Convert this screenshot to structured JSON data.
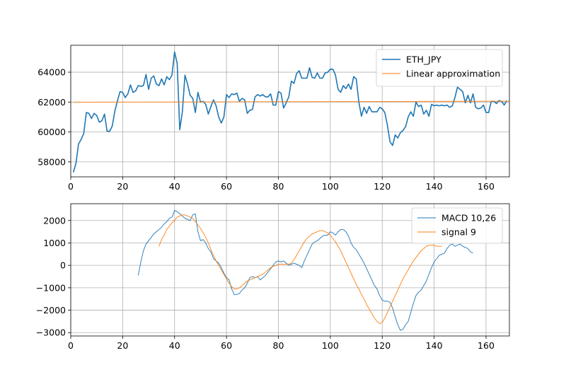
{
  "chart_data": [
    {
      "type": "line",
      "xlim": [
        0,
        169
      ],
      "ylim": [
        57000,
        65800
      ],
      "xticks": [
        0,
        20,
        40,
        60,
        80,
        100,
        120,
        140,
        160
      ],
      "yticks": [
        58000,
        60000,
        62000,
        64000
      ],
      "grid": true,
      "legend_position": "top-right",
      "series": [
        {
          "name": "ETH_JPY",
          "color": "#1f77b4",
          "x_start": 1,
          "values": [
            57300,
            57900,
            59200,
            59500,
            59900,
            61300,
            61250,
            60900,
            61250,
            61100,
            60650,
            60750,
            61200,
            60050,
            60050,
            60400,
            61400,
            62100,
            62700,
            62650,
            62300,
            62550,
            63150,
            62650,
            62750,
            63100,
            63050,
            63100,
            63850,
            62850,
            63600,
            63750,
            63200,
            63100,
            63550,
            63150,
            63700,
            63500,
            63800,
            65350,
            64600,
            60150,
            61350,
            63800,
            63200,
            62450,
            62250,
            61300,
            62650,
            62000,
            62050,
            61850,
            61200,
            61700,
            62150,
            61750,
            61000,
            60600,
            61000,
            62500,
            62300,
            62550,
            62500,
            62600,
            62050,
            62250,
            62150,
            61250,
            61450,
            61500,
            62350,
            62500,
            62400,
            62500,
            62350,
            62350,
            62550,
            61800,
            61800,
            62700,
            62600,
            61600,
            61950,
            62350,
            63400,
            63250,
            63900,
            64100,
            63600,
            63600,
            63600,
            64300,
            63650,
            63600,
            63950,
            63600,
            63600,
            63950,
            64000,
            64200,
            64200,
            63800,
            62850,
            62650,
            63100,
            62900,
            63200,
            62850,
            63700,
            63550,
            62000,
            61050,
            61650,
            61250,
            61700,
            61350,
            61350,
            61350,
            61650,
            61550,
            61300,
            60450,
            59350,
            59100,
            59800,
            59600,
            59950,
            60100,
            60350,
            61000,
            61350,
            61050,
            62000,
            61700,
            61800,
            61200,
            61450,
            61050,
            61850,
            61750,
            61800,
            61750,
            61800,
            61750,
            61800,
            61650,
            61750,
            62300,
            63000,
            62850,
            62700,
            61950,
            62450,
            61950,
            62550,
            61650,
            61550,
            61600,
            61800,
            61300,
            61300,
            62050,
            62050,
            61900,
            62100,
            62050,
            61800,
            62100
          ]
        },
        {
          "name": "Linear approximation",
          "color": "#ff7f0e",
          "x": [
            1,
            169
          ],
          "values": [
            61990,
            62060
          ]
        }
      ]
    },
    {
      "type": "line",
      "xlim": [
        0,
        169
      ],
      "ylim": [
        -3150,
        2750
      ],
      "xticks": [
        0,
        20,
        40,
        60,
        80,
        100,
        120,
        140,
        160
      ],
      "yticks": [
        -3000,
        -2000,
        -1000,
        0,
        1000,
        2000
      ],
      "grid": true,
      "legend_position": "top-right",
      "series": [
        {
          "name": "MACD 10,26",
          "color": "#1f77b4",
          "x_start": 26,
          "values": [
            -450,
            150,
            650,
            950,
            1100,
            1250,
            1400,
            1500,
            1600,
            1700,
            1850,
            1950,
            2100,
            2150,
            2450,
            2400,
            2300,
            2200,
            2100,
            2050,
            2000,
            2250,
            2300,
            1500,
            1100,
            1150,
            1000,
            750,
            600,
            300,
            200,
            100,
            -100,
            -350,
            -550,
            -650,
            -1050,
            -1300,
            -1300,
            -1250,
            -1100,
            -1000,
            -800,
            -550,
            -500,
            -550,
            -500,
            -650,
            -550,
            -450,
            -300,
            -150,
            0,
            150,
            200,
            150,
            200,
            100,
            0,
            50,
            100,
            50,
            0,
            -100,
            200,
            450,
            700,
            950,
            1050,
            1100,
            1200,
            1300,
            1350,
            1350,
            1500,
            1450,
            1350,
            1500,
            1600,
            1600,
            1500,
            1300,
            1000,
            800,
            700,
            500,
            300,
            100,
            -150,
            -400,
            -650,
            -900,
            -1050,
            -1350,
            -1550,
            -1600,
            -1600,
            -1650,
            -1900,
            -2300,
            -2650,
            -2900,
            -2850,
            -2650,
            -2500,
            -2100,
            -1700,
            -1350,
            -1200,
            -1100,
            -900,
            -700,
            -400,
            -100,
            150,
            300,
            450,
            500,
            550,
            750,
            900,
            950,
            850,
            900,
            950,
            850,
            800,
            750,
            600,
            550
          ]
        },
        {
          "name": "signal 9",
          "color": "#ff7f0e",
          "x_start": 34,
          "values": [
            850,
            1150,
            1350,
            1600,
            1750,
            1900,
            2000,
            2150,
            2200,
            2250,
            2250,
            2200,
            2150,
            2100,
            1950,
            1800,
            1650,
            1450,
            1250,
            1000,
            700,
            450,
            200,
            0,
            -200,
            -400,
            -600,
            -800,
            -950,
            -1050,
            -1050,
            -1000,
            -900,
            -800,
            -700,
            -650,
            -600,
            -550,
            -500,
            -450,
            -400,
            -300,
            -200,
            -100,
            -50,
            0,
            50,
            50,
            50,
            50,
            50,
            100,
            250,
            450,
            650,
            850,
            1050,
            1200,
            1300,
            1400,
            1450,
            1500,
            1550,
            1550,
            1500,
            1450,
            1350,
            1200,
            1050,
            850,
            650,
            400,
            150,
            -100,
            -350,
            -600,
            -850,
            -1050,
            -1300,
            -1500,
            -1750,
            -1950,
            -2150,
            -2350,
            -2500,
            -2600,
            -2550,
            -2350,
            -2100,
            -1850,
            -1600,
            -1350,
            -1100,
            -850,
            -600,
            -400,
            -200,
            0,
            200,
            350,
            500,
            650,
            750,
            850,
            900,
            900,
            900,
            850,
            850,
            850
          ]
        }
      ]
    }
  ]
}
